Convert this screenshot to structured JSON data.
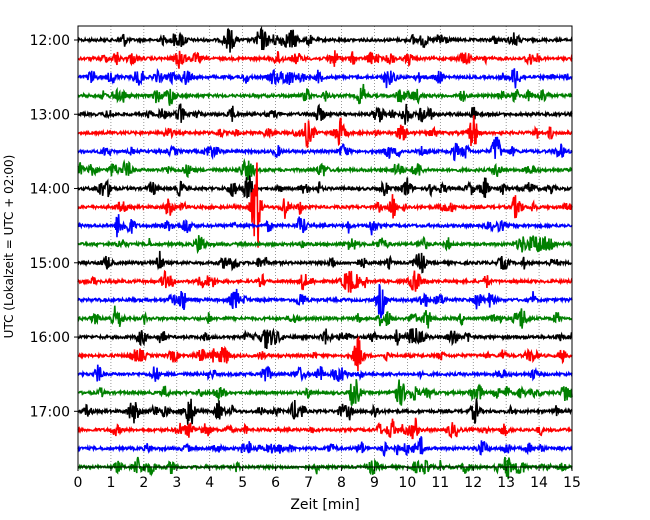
{
  "chart_data": {
    "type": "line",
    "title": "",
    "xlabel": "Zeit  [min]",
    "ylabel": "UTC (Lokalzeit = UTC + 02:00)",
    "xlim": [
      0,
      15
    ],
    "x_ticks": [
      0,
      1,
      2,
      3,
      4,
      5,
      6,
      7,
      8,
      9,
      10,
      11,
      12,
      13,
      14,
      15
    ],
    "grid": "vertical dotted",
    "y_ticks": [
      {
        "label": "12:00",
        "row": 0
      },
      {
        "label": "13:00",
        "row": 4
      },
      {
        "label": "14:00",
        "row": 8
      },
      {
        "label": "15:00",
        "row": 12
      },
      {
        "label": "16:00",
        "row": 16
      },
      {
        "label": "17:00",
        "row": 20
      }
    ],
    "row_start_times": [
      "12:00",
      "12:15",
      "12:30",
      "12:45",
      "13:00",
      "13:15",
      "13:30",
      "13:45",
      "14:00",
      "14:15",
      "14:30",
      "14:45",
      "15:00",
      "15:15",
      "15:30",
      "15:45",
      "16:00",
      "16:15",
      "16:30",
      "16:45",
      "17:00",
      "17:15",
      "17:30",
      "17:45"
    ],
    "row_colors": [
      "#000000",
      "#ff0000",
      "#0000ff",
      "#008000"
    ],
    "notable_events": [
      {
        "row": 9,
        "minute": 5.4,
        "amplitude": "large"
      },
      {
        "row": 14,
        "minute": 9.2,
        "amplitude": "medium"
      },
      {
        "row": 6,
        "minute": 12.7,
        "amplitude": "medium"
      },
      {
        "row": 5,
        "minute": 12.0,
        "amplitude": "medium"
      },
      {
        "row": 17,
        "minute": 8.5,
        "amplitude": "medium"
      },
      {
        "row": 3,
        "minute": 8.6,
        "amplitude": "small"
      }
    ]
  }
}
